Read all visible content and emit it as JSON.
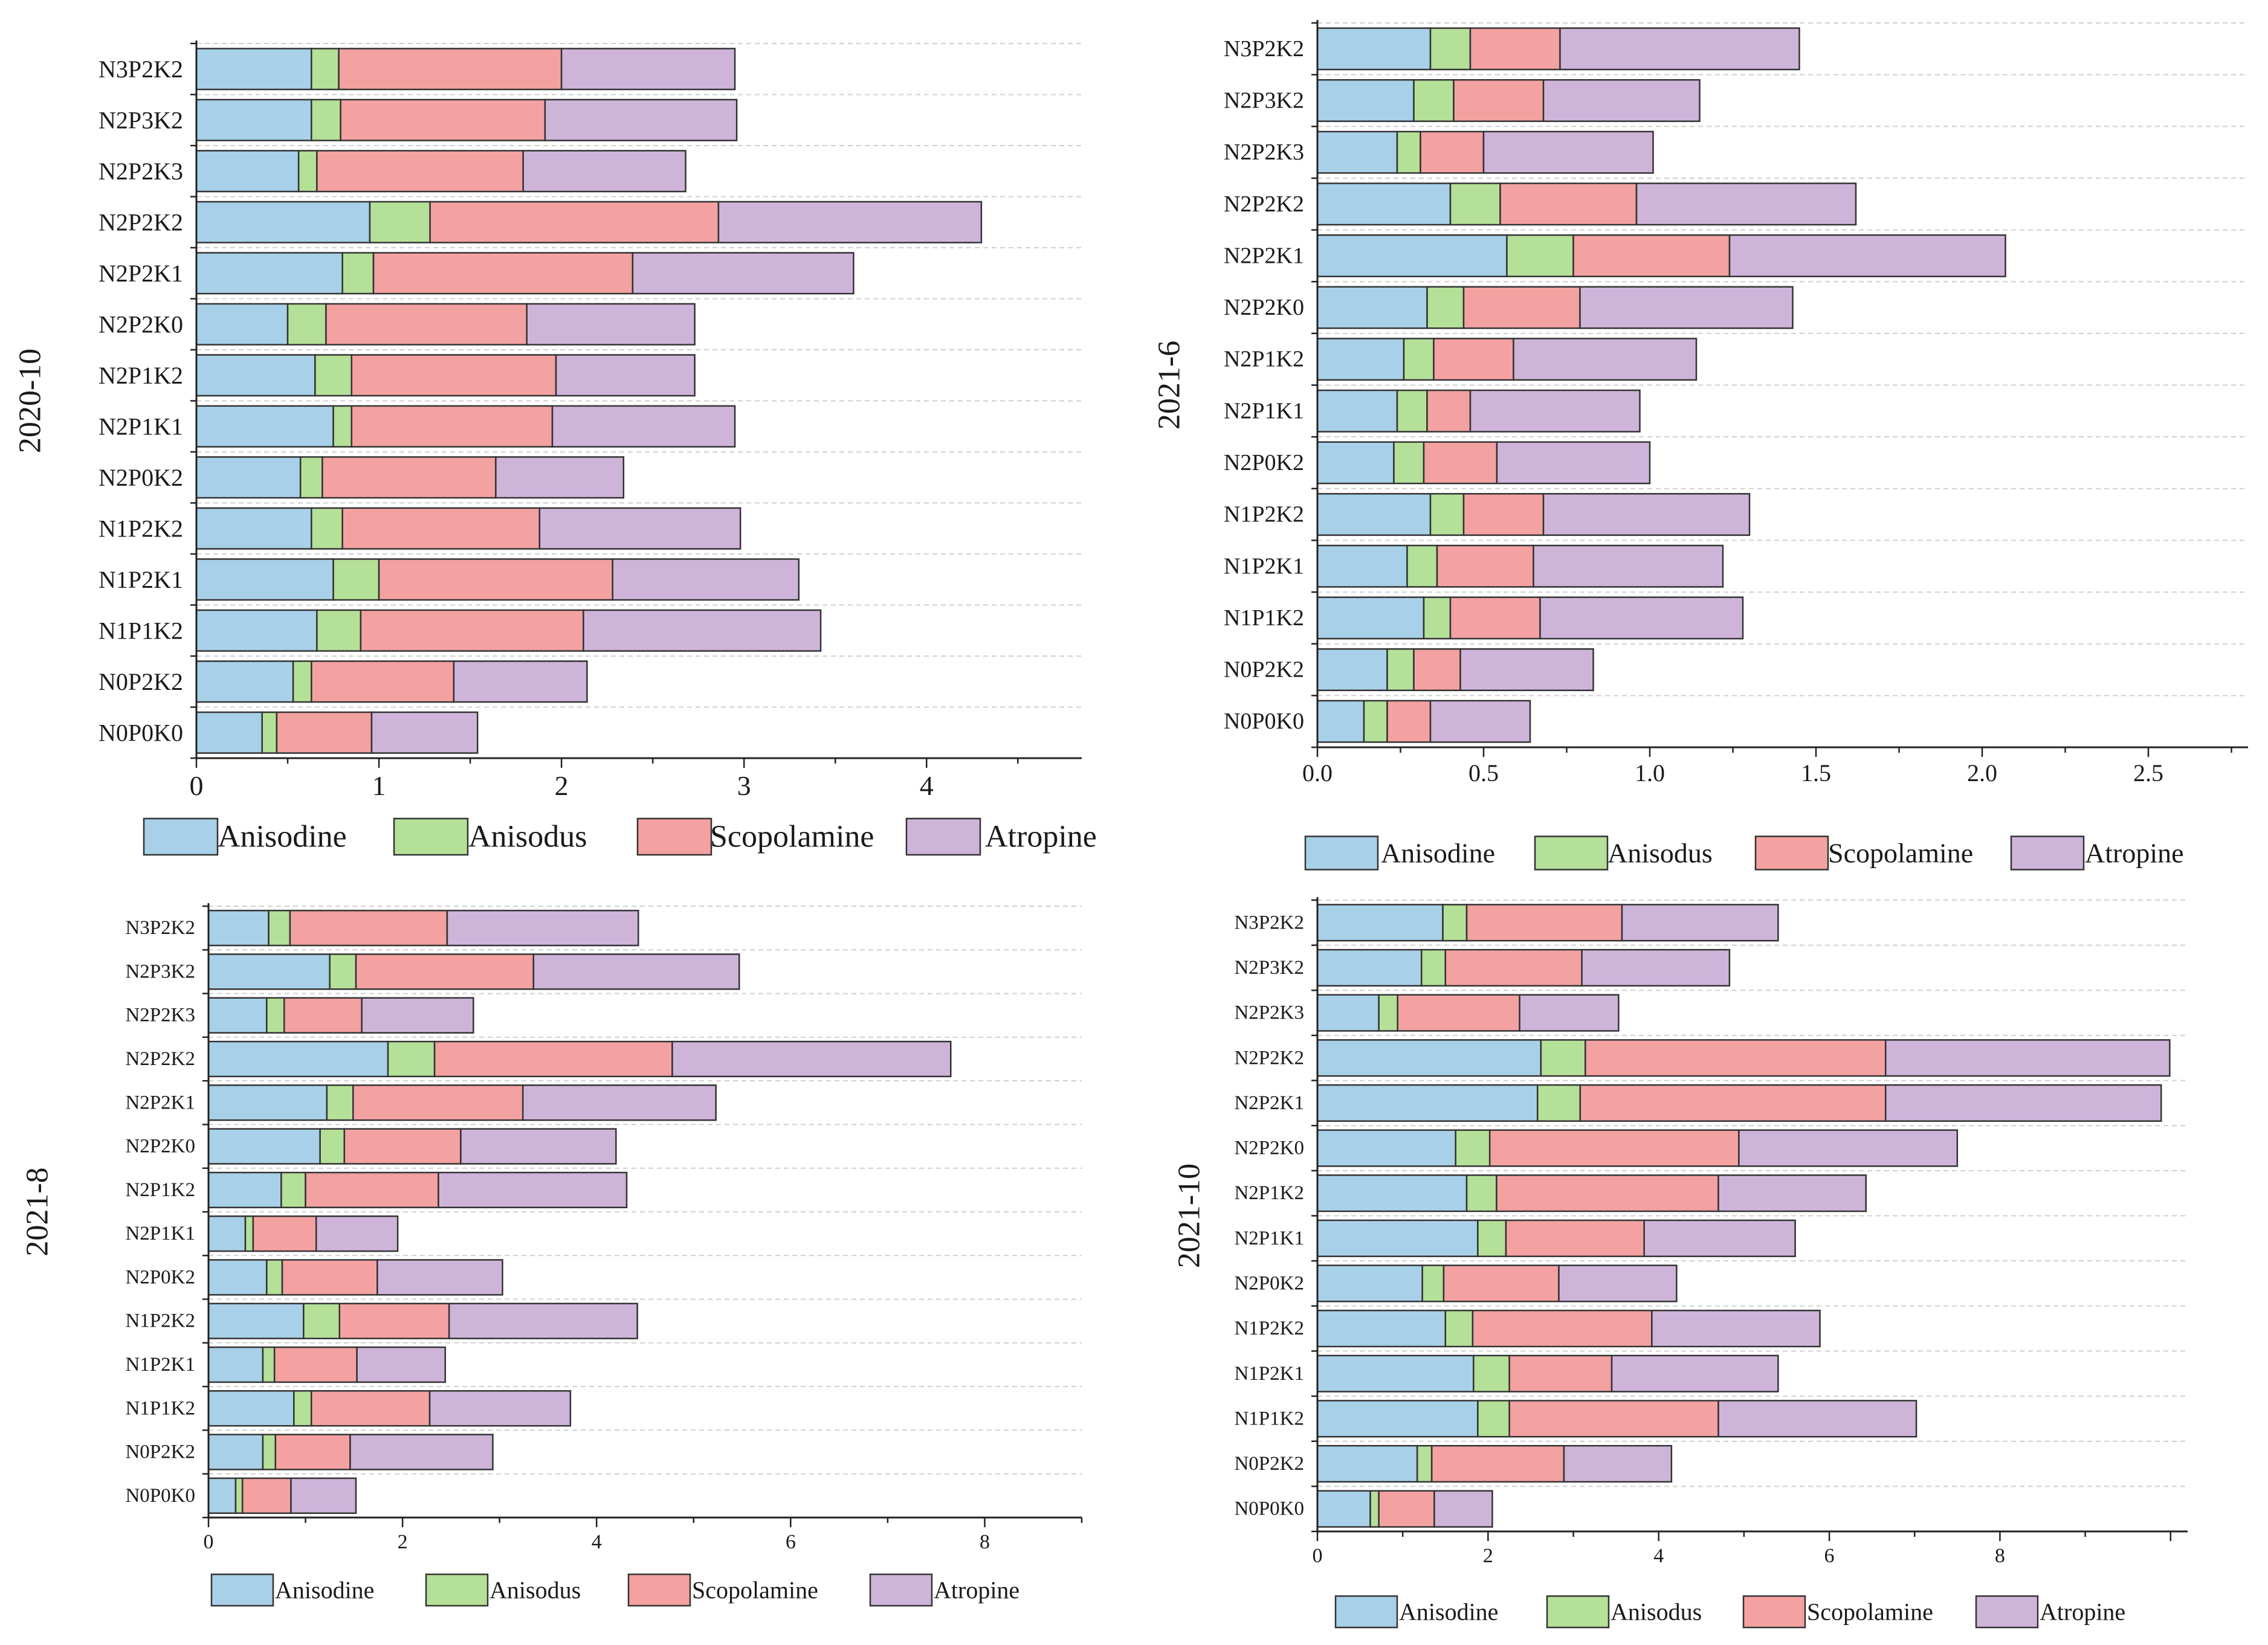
{
  "colors": {
    "Anisodine": "#a8d0e8",
    "Anisodus": "#b4e098",
    "Scopolamine": "#f4a1a1",
    "Atropine": "#cfb4da",
    "stroke": "#333333",
    "grid": "#d0d0d0"
  },
  "chart_data": [
    {
      "type": "bar",
      "orientation": "horizontal",
      "stacked": true,
      "title": "",
      "ylabel": "2020-10",
      "xlabel": "",
      "categories": [
        "N3P2K2",
        "N2P3K2",
        "N2P2K3",
        "N2P2K2",
        "N2P2K1",
        "N2P2K0",
        "N2P1K2",
        "N2P1K1",
        "N2P0K2",
        "N1P2K2",
        "N1P2K1",
        "N1P1K2",
        "N0P2K2",
        "N0P0K0"
      ],
      "series": [
        {
          "name": "Anisodine",
          "values": [
            0.63,
            0.63,
            0.56,
            0.95,
            0.8,
            0.5,
            0.65,
            0.75,
            0.57,
            0.63,
            0.75,
            0.66,
            0.53,
            0.36
          ]
        },
        {
          "name": "Anisodus",
          "values": [
            0.15,
            0.16,
            0.1,
            0.33,
            0.17,
            0.21,
            0.2,
            0.1,
            0.12,
            0.17,
            0.25,
            0.24,
            0.1,
            0.08
          ]
        },
        {
          "name": "Scopolamine",
          "values": [
            1.22,
            1.12,
            1.13,
            1.58,
            1.42,
            1.1,
            1.12,
            1.1,
            0.95,
            1.08,
            1.28,
            1.22,
            0.78,
            0.52
          ]
        },
        {
          "name": "Atropine",
          "values": [
            0.95,
            1.05,
            0.89,
            1.44,
            1.21,
            0.92,
            0.76,
            1.0,
            0.7,
            1.1,
            1.02,
            1.3,
            0.73,
            0.58
          ]
        }
      ],
      "xlim": [
        0,
        4.85
      ],
      "xticks": [
        0,
        1,
        2,
        3,
        4
      ],
      "xtick_labels": [
        "0",
        "1",
        "2",
        "3",
        "4"
      ],
      "legend": [
        "Anisodine",
        "Anisodus",
        "Scopolamine",
        "Atropine"
      ],
      "legend_position": "bottom"
    },
    {
      "type": "bar",
      "orientation": "horizontal",
      "stacked": true,
      "title": "",
      "ylabel": "2021-6",
      "xlabel": "",
      "categories": [
        "N3P2K2",
        "N2P3K2",
        "N2P2K3",
        "N2P2K2",
        "N2P2K1",
        "N2P2K0",
        "N2P1K2",
        "N2P1K1",
        "N2P0K2",
        "N1P2K2",
        "N1P2K1",
        "N1P1K2",
        "N0P2K2",
        "N0P0K0"
      ],
      "series": [
        {
          "name": "Anisodine",
          "values": [
            0.34,
            0.29,
            0.24,
            0.4,
            0.57,
            0.33,
            0.26,
            0.24,
            0.23,
            0.34,
            0.27,
            0.32,
            0.21,
            0.14
          ]
        },
        {
          "name": "Anisodus",
          "values": [
            0.12,
            0.12,
            0.07,
            0.15,
            0.2,
            0.11,
            0.09,
            0.09,
            0.09,
            0.1,
            0.09,
            0.08,
            0.08,
            0.07
          ]
        },
        {
          "name": "Scopolamine",
          "values": [
            0.27,
            0.27,
            0.19,
            0.41,
            0.47,
            0.35,
            0.24,
            0.13,
            0.22,
            0.24,
            0.29,
            0.27,
            0.14,
            0.13
          ]
        },
        {
          "name": "Atropine",
          "values": [
            0.72,
            0.47,
            0.51,
            0.66,
            0.83,
            0.64,
            0.55,
            0.51,
            0.46,
            0.62,
            0.57,
            0.61,
            0.4,
            0.3
          ]
        }
      ],
      "xlim": [
        0,
        2.8
      ],
      "xticks": [
        0,
        0.5,
        1,
        1.5,
        2,
        2.5
      ],
      "xtick_labels": [
        "0.0",
        "0.5",
        "1.0",
        "1.5",
        "2.0",
        "2.5"
      ],
      "legend": [
        "Anisodine",
        "Anisodus",
        "Scopolamine",
        "Atropine"
      ],
      "legend_position": "bottom"
    },
    {
      "type": "bar",
      "orientation": "horizontal",
      "stacked": true,
      "title": "",
      "ylabel": "2021-8",
      "xlabel": "",
      "categories": [
        "N3P2K2",
        "N2P3K2",
        "N2P2K3",
        "N2P2K2",
        "N2P2K1",
        "N2P2K0",
        "N2P1K2",
        "N2P1K1",
        "N2P0K2",
        "N1P2K2",
        "N1P2K1",
        "N1P1K2",
        "N0P2K2",
        "N0P0K0"
      ],
      "series": [
        {
          "name": "Anisodine",
          "values": [
            0.62,
            1.25,
            0.6,
            1.85,
            1.22,
            1.15,
            0.75,
            0.38,
            0.6,
            0.98,
            0.56,
            0.88,
            0.56,
            0.28
          ]
        },
        {
          "name": "Anisodus",
          "values": [
            0.22,
            0.27,
            0.18,
            0.48,
            0.27,
            0.25,
            0.25,
            0.08,
            0.16,
            0.37,
            0.12,
            0.18,
            0.13,
            0.07
          ]
        },
        {
          "name": "Scopolamine",
          "values": [
            1.62,
            1.83,
            0.8,
            2.45,
            1.75,
            1.2,
            1.37,
            0.65,
            0.98,
            1.13,
            0.85,
            1.22,
            0.77,
            0.5
          ]
        },
        {
          "name": "Atropine",
          "values": [
            1.97,
            2.12,
            1.15,
            2.87,
            1.99,
            1.6,
            1.94,
            0.84,
            1.29,
            1.94,
            0.91,
            1.45,
            1.47,
            0.67
          ]
        }
      ],
      "xlim": [
        0,
        9.0
      ],
      "xticks": [
        0,
        2,
        4,
        6,
        8
      ],
      "xtick_labels": [
        "0",
        "2",
        "4",
        "6",
        "8"
      ],
      "legend": [
        "Anisodine",
        "Anisodus",
        "Scopolamine",
        "Atropine"
      ],
      "legend_position": "bottom"
    },
    {
      "type": "bar",
      "orientation": "horizontal",
      "stacked": true,
      "title": "",
      "ylabel": "2021-10",
      "xlabel": "",
      "categories": [
        "N3P2K2",
        "N2P3K2",
        "N2P2K3",
        "N2P2K2",
        "N2P2K1",
        "N2P2K0",
        "N2P1K2",
        "N2P1K1",
        "N2P0K2",
        "N1P2K2",
        "N1P2K1",
        "N1P1K2",
        "N0P2K2",
        "N0P0K0"
      ],
      "series": [
        {
          "name": "Anisodine",
          "values": [
            1.47,
            1.22,
            0.72,
            2.62,
            2.58,
            1.62,
            1.75,
            1.88,
            1.23,
            1.5,
            1.83,
            1.88,
            1.17,
            0.62
          ]
        },
        {
          "name": "Anisodus",
          "values": [
            0.28,
            0.28,
            0.22,
            0.52,
            0.5,
            0.4,
            0.35,
            0.33,
            0.25,
            0.32,
            0.42,
            0.37,
            0.17,
            0.1
          ]
        },
        {
          "name": "Scopolamine",
          "values": [
            1.82,
            1.6,
            1.43,
            3.52,
            3.58,
            2.92,
            2.6,
            1.62,
            1.35,
            2.1,
            1.2,
            2.45,
            1.55,
            0.65
          ]
        },
        {
          "name": "Atropine",
          "values": [
            1.83,
            1.73,
            1.16,
            3.33,
            3.23,
            2.56,
            1.73,
            1.77,
            1.38,
            1.97,
            1.95,
            2.32,
            1.26,
            0.68
          ]
        }
      ],
      "xlim": [
        0,
        10.2
      ],
      "xticks": [
        0,
        2,
        4,
        6,
        8
      ],
      "xtick_labels": [
        "0",
        "2",
        "4",
        "6",
        "8"
      ],
      "legend": [
        "Anisodine",
        "Anisodus",
        "Scopolamine",
        "Atropine"
      ],
      "legend_position": "bottom"
    }
  ]
}
